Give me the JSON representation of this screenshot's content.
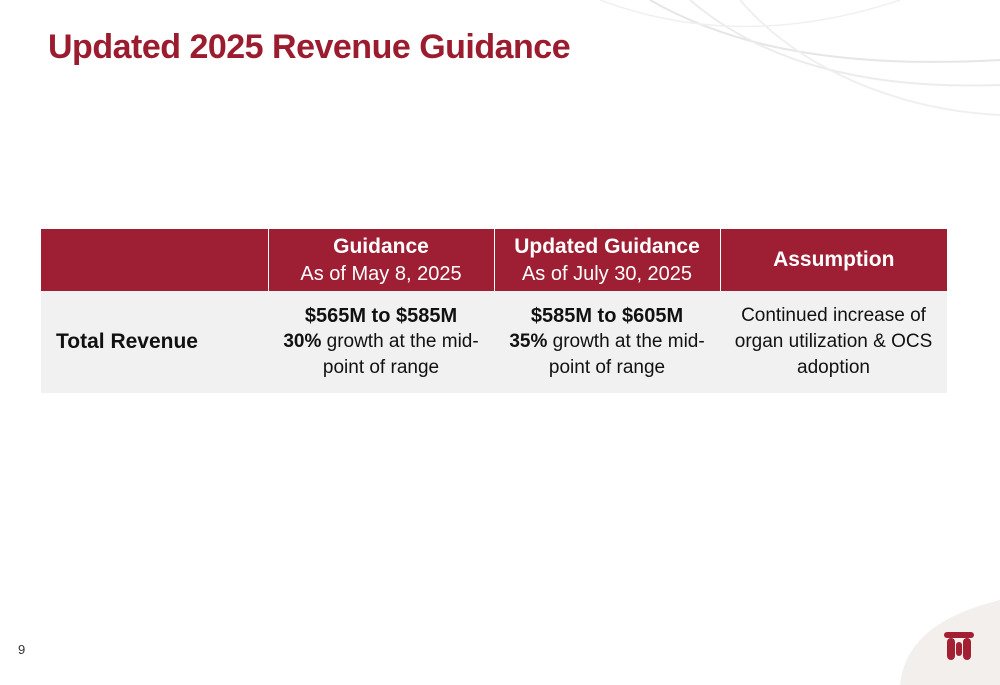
{
  "slide": {
    "title": "Updated 2025 Revenue Guidance",
    "page_number": "9"
  },
  "table": {
    "headers": [
      {
        "main": "",
        "sub": ""
      },
      {
        "main": "Guidance",
        "sub": "As of May 8, 2025"
      },
      {
        "main": "Updated Guidance",
        "sub": "As of July 30, 2025"
      },
      {
        "main": "Assumption",
        "sub": ""
      }
    ],
    "row": {
      "label": "Total Revenue",
      "guidance": {
        "range": "$565M to $585M",
        "pct": "30%",
        "text": " growth at the mid-point of range"
      },
      "updated": {
        "range": "$585M to $605M",
        "pct": "35%",
        "text": " growth at the mid-point of range"
      },
      "assumption": "Continued increase of organ utilization & OCS adoption"
    }
  },
  "colors": {
    "brand": "#9b1c2e",
    "header_bg": "#9e1f34",
    "row_bg": "#f1f1f1"
  },
  "icons": {
    "logo": "company-logo-icon"
  }
}
